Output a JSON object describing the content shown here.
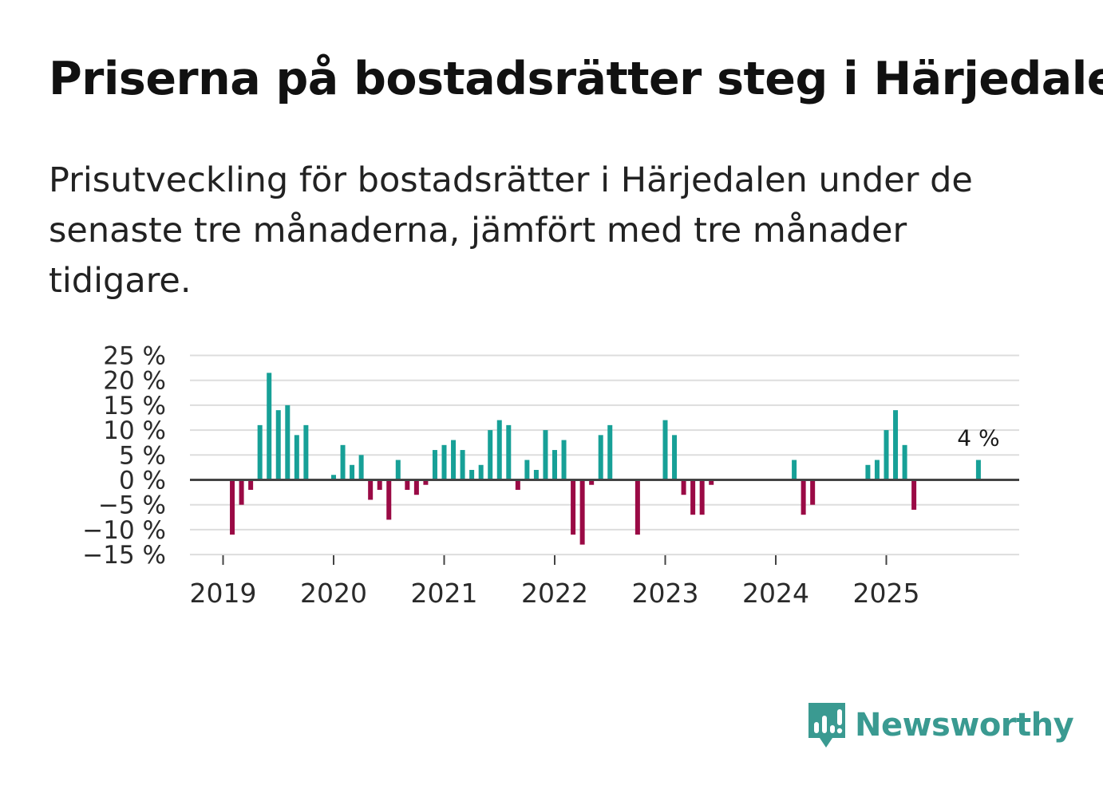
{
  "title": "Priserna på bostadsrätter steg i Härjedalen",
  "subtitle": "Prisutveckling för bostadsrätter i Härjedalen under de senaste tre månaderna, jämfört med tre månader tidigare.",
  "brand": {
    "name": "Newsworthy",
    "color": "#3a9a91"
  },
  "colors": {
    "positive": "#17a097",
    "negative": "#9a0a45",
    "grid": "#dddddd",
    "zero": "#444444"
  },
  "chart_data": {
    "type": "bar",
    "title": "Priserna på bostadsrätter steg i Härjedalen",
    "xlabel": "",
    "ylabel": "",
    "ylim": [
      -15,
      25
    ],
    "yticks": [
      25,
      20,
      15,
      10,
      5,
      0,
      -5,
      -10,
      -15
    ],
    "ytick_labels": [
      "25 %",
      "20 %",
      "15 %",
      "10 %",
      "5 %",
      "0 %",
      "−5 %",
      "−10 %",
      "−15 %"
    ],
    "year_labels": [
      "2019",
      "2020",
      "2021",
      "2022",
      "2023",
      "2024",
      "2025"
    ],
    "start": "2019-01",
    "categories": [
      "2019-01",
      "2019-02",
      "2019-03",
      "2019-04",
      "2019-05",
      "2019-06",
      "2019-07",
      "2019-08",
      "2019-09",
      "2019-10",
      "2019-11",
      "2019-12",
      "2020-01",
      "2020-02",
      "2020-03",
      "2020-04",
      "2020-05",
      "2020-06",
      "2020-07",
      "2020-08",
      "2020-09",
      "2020-10",
      "2020-11",
      "2020-12",
      "2021-01",
      "2021-02",
      "2021-03",
      "2021-04",
      "2021-05",
      "2021-06",
      "2021-07",
      "2021-08",
      "2021-09",
      "2021-10",
      "2021-11",
      "2021-12",
      "2022-01",
      "2022-02",
      "2022-03",
      "2022-04",
      "2022-05",
      "2022-06",
      "2022-07",
      "2022-08",
      "2022-09",
      "2022-10",
      "2022-11",
      "2022-12",
      "2023-01",
      "2023-02",
      "2023-03",
      "2023-04",
      "2023-05",
      "2023-06",
      "2023-07",
      "2023-08",
      "2023-09",
      "2023-10",
      "2023-11",
      "2023-12",
      "2024-01",
      "2024-02",
      "2024-03",
      "2024-04",
      "2024-05",
      "2024-06",
      "2024-07",
      "2024-08",
      "2024-09",
      "2024-10",
      "2024-11",
      "2024-12",
      "2025-01",
      "2025-02",
      "2025-03",
      "2025-04",
      "2025-05",
      "2025-06",
      "2025-07",
      "2025-08",
      "2025-09",
      "2025-10",
      "2025-11"
    ],
    "values": [
      null,
      -11,
      -5,
      -2,
      11,
      21.5,
      14,
      15,
      9,
      11,
      null,
      null,
      1,
      7,
      3,
      5,
      -4,
      -2,
      -8,
      4,
      -2,
      -3,
      -1,
      6,
      7,
      8,
      6,
      2,
      3,
      10,
      12,
      11,
      -2,
      4,
      2,
      10,
      6,
      8,
      -11,
      -13,
      -1,
      9,
      11,
      null,
      null,
      -11,
      null,
      null,
      12,
      9,
      -3,
      -7,
      -7,
      -1,
      null,
      null,
      null,
      null,
      null,
      null,
      null,
      null,
      4,
      -7,
      -5,
      null,
      null,
      null,
      null,
      null,
      3,
      4,
      10,
      14,
      7,
      -6,
      null,
      null,
      null,
      null,
      null,
      null,
      4
    ],
    "annotation": {
      "category": "2025-11",
      "label": "4 %"
    }
  }
}
